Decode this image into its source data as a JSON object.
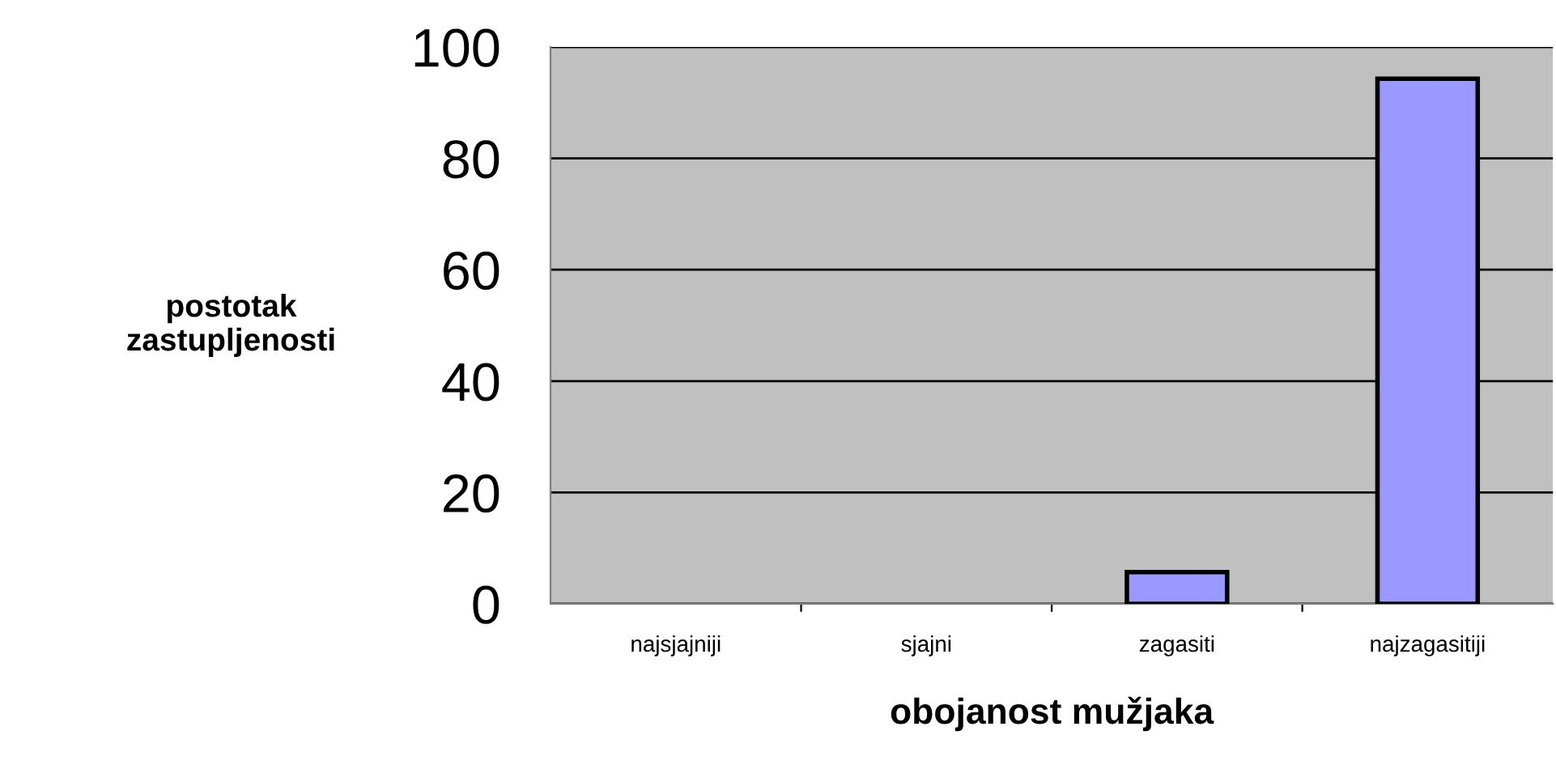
{
  "chart_data": {
    "type": "bar",
    "xlabel": "obojanost mužjaka",
    "ylabel": "postotak\nzastupljenosti",
    "categories": [
      "najsjajniji",
      "sjajni",
      "zagasiti",
      "najzagasitiji"
    ],
    "values": [
      0,
      0,
      5.7,
      94.3
    ],
    "color": "#9999ff",
    "ylim": [
      0,
      100
    ],
    "yticks": [
      0,
      20,
      40,
      60,
      80,
      100
    ],
    "grid": "y"
  }
}
